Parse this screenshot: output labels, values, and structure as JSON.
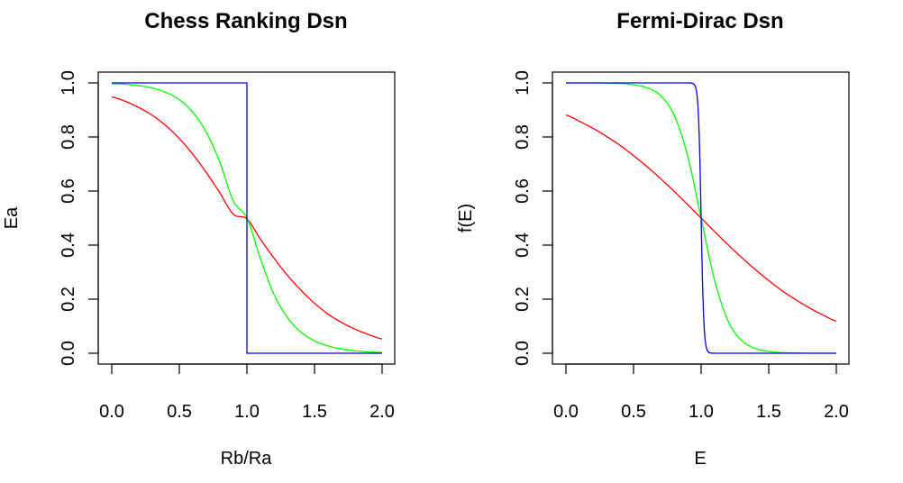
{
  "chart_data": [
    {
      "type": "line",
      "title": "Chess Ranking Dsn",
      "xlabel": "Rb/Ra",
      "ylabel": "Ea",
      "xlim": [
        0,
        2
      ],
      "ylim": [
        0,
        1
      ],
      "x_ticks": [
        "0.0",
        "0.5",
        "1.0",
        "1.5",
        "2.0"
      ],
      "y_ticks": [
        "0.0",
        "0.2",
        "0.4",
        "0.6",
        "0.8",
        "1.0"
      ],
      "grid": false,
      "x": [
        0.0,
        0.1,
        0.2,
        0.3,
        0.4,
        0.5,
        0.6,
        0.7,
        0.8,
        0.9,
        1.0,
        1.1,
        1.2,
        1.3,
        1.4,
        1.5,
        1.6,
        1.7,
        1.8,
        1.9,
        2.0
      ],
      "series": [
        {
          "color": "#ff0000",
          "values": [
            0.948,
            0.932,
            0.909,
            0.88,
            0.842,
            0.794,
            0.736,
            0.668,
            0.593,
            0.514,
            0.497,
            0.422,
            0.352,
            0.288,
            0.233,
            0.185,
            0.145,
            0.114,
            0.089,
            0.069,
            0.053
          ]
        },
        {
          "color": "#00ff00",
          "values": [
            0.997,
            0.995,
            0.99,
            0.981,
            0.965,
            0.938,
            0.891,
            0.817,
            0.706,
            0.563,
            0.5,
            0.35,
            0.218,
            0.132,
            0.078,
            0.046,
            0.027,
            0.016,
            0.009,
            0.005,
            0.003
          ]
        },
        {
          "color": "#0000ff",
          "values": [
            1.0,
            1.0,
            1.0,
            1.0,
            1.0,
            1.0,
            1.0,
            1.0,
            1.0,
            1.0,
            0.0,
            0.0,
            0.0,
            0.0,
            0.0,
            0.0,
            0.0,
            0.0,
            0.0,
            0.0,
            0.0
          ],
          "step": true
        }
      ]
    },
    {
      "type": "line",
      "title": "Fermi-Dirac Dsn",
      "xlabel": "E",
      "ylabel": "f(E)",
      "xlim": [
        0,
        2
      ],
      "ylim": [
        0,
        1
      ],
      "x_ticks": [
        "0.0",
        "0.5",
        "1.0",
        "1.5",
        "2.0"
      ],
      "y_ticks": [
        "0.0",
        "0.2",
        "0.4",
        "0.6",
        "0.8",
        "1.0"
      ],
      "grid": false,
      "x": [
        0.0,
        0.1,
        0.2,
        0.3,
        0.4,
        0.5,
        0.6,
        0.7,
        0.8,
        0.9,
        1.0,
        1.1,
        1.2,
        1.3,
        1.4,
        1.5,
        1.6,
        1.7,
        1.8,
        1.9,
        2.0
      ],
      "series": [
        {
          "color": "#ff0000",
          "values": [
            0.881,
            0.858,
            0.832,
            0.802,
            0.769,
            0.731,
            0.69,
            0.646,
            0.599,
            0.55,
            0.5,
            0.45,
            0.401,
            0.354,
            0.31,
            0.269,
            0.231,
            0.198,
            0.168,
            0.142,
            0.119
          ]
        },
        {
          "color": "#00ff00",
          "values": [
            1.0,
            1.0,
            1.0,
            0.999,
            0.998,
            0.993,
            0.982,
            0.953,
            0.881,
            0.731,
            0.5,
            0.269,
            0.119,
            0.047,
            0.018,
            0.007,
            0.002,
            0.001,
            0.0,
            0.0,
            0.0
          ]
        },
        {
          "color": "#0000ff",
          "values": [
            1.0,
            1.0,
            1.0,
            1.0,
            1.0,
            1.0,
            1.0,
            1.0,
            1.0,
            1.0,
            0.5,
            0.0,
            0.0,
            0.0,
            0.0,
            0.0,
            0.0,
            0.0,
            0.0,
            0.0,
            0.0
          ],
          "steep_logistic": 0.01
        }
      ]
    }
  ]
}
